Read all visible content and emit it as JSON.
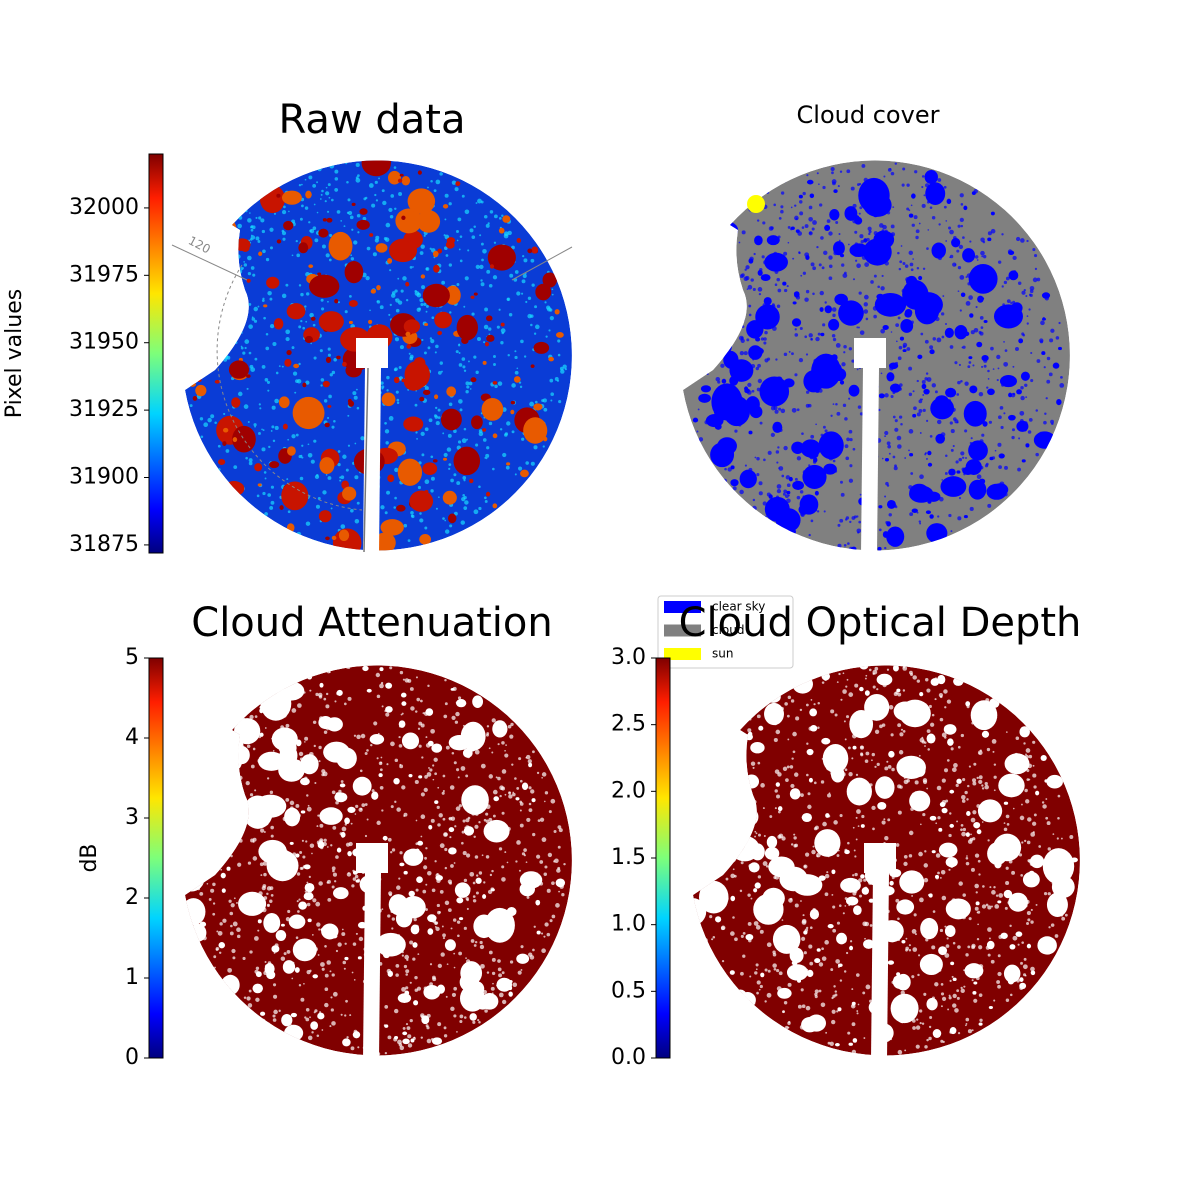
{
  "chart_data": [
    {
      "type": "image",
      "title": "Raw data",
      "colorbar_label": "Pixel values",
      "colormap": "jet",
      "ylim": [
        31872,
        32020
      ],
      "yticks": [
        31875,
        31900,
        31925,
        31950,
        31975,
        32000
      ],
      "annotations": [
        "120"
      ]
    },
    {
      "type": "image",
      "title": "Cloud cover",
      "series": [
        {
          "name": "clear sky",
          "color": "#0000ff"
        },
        {
          "name": "cloud",
          "color": "#808080"
        },
        {
          "name": "sun",
          "color": "#ffff00"
        }
      ]
    },
    {
      "type": "image",
      "title": "Cloud Attenuation",
      "colorbar_label": "dB",
      "colormap": "jet",
      "ylim": [
        0,
        5
      ],
      "yticks": [
        0,
        1,
        2,
        3,
        4,
        5
      ]
    },
    {
      "type": "image",
      "title": "Cloud Optical Depth",
      "colormap": "jet",
      "ylim": [
        0,
        3
      ],
      "yticks": [
        {
          "value": 0,
          "label": "0.0"
        },
        {
          "value": 0.5,
          "label": "0.5"
        },
        {
          "value": 1,
          "label": "1.0"
        },
        {
          "value": 1.5,
          "label": "1.5"
        },
        {
          "value": 2,
          "label": "2.0"
        },
        {
          "value": 2.5,
          "label": "2.5"
        },
        {
          "value": 3,
          "label": "3.0"
        }
      ]
    }
  ]
}
